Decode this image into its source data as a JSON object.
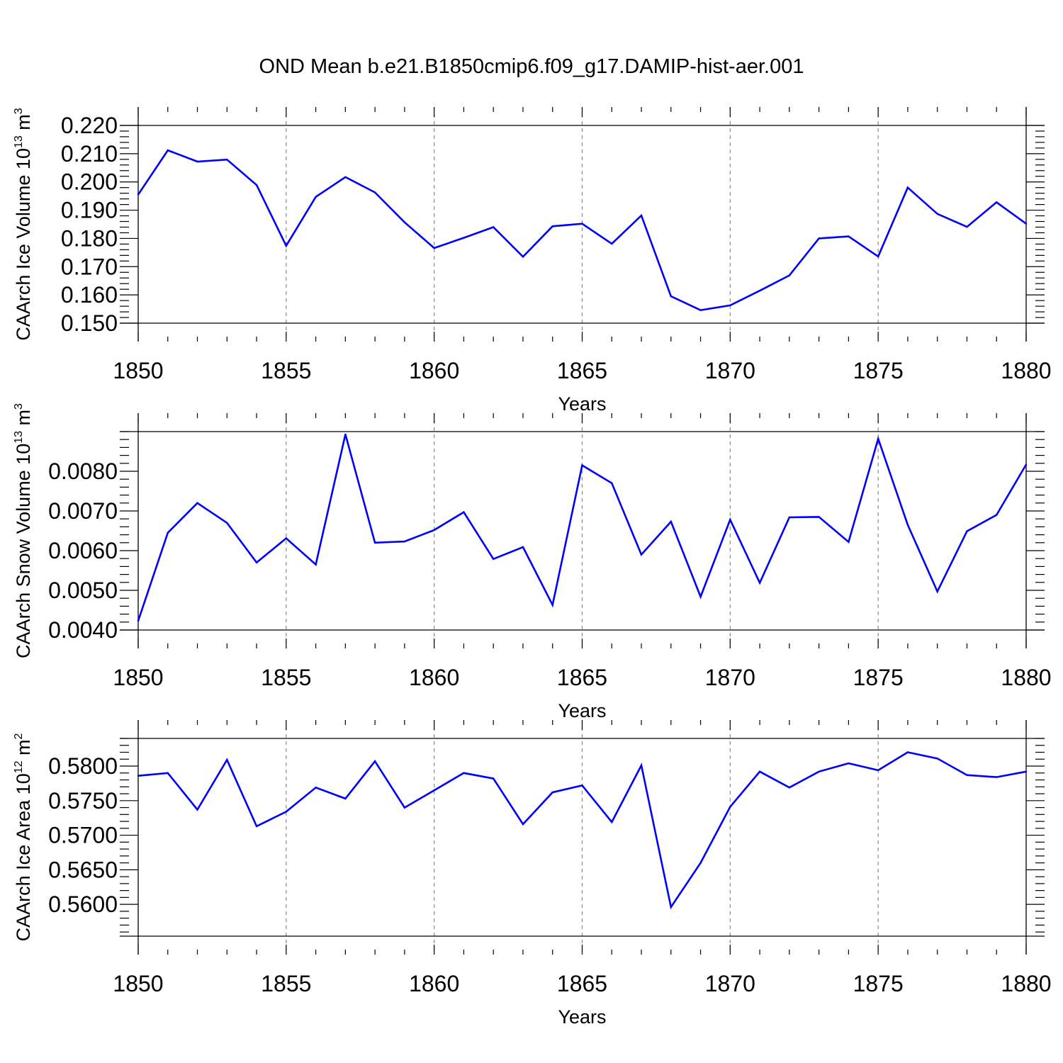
{
  "page": {
    "title": "OND Mean b.e21.B1850cmip6.f09_g17.DAMIP-hist-aer.001"
  },
  "colors": {
    "line": "#0000ff",
    "axes": "#000000",
    "grid": "#888888"
  },
  "chart_data": [
    {
      "type": "line",
      "title": "",
      "xlabel": "Years",
      "ylabel": "CAArch Ice Volume 10",
      "ylabel_exponent": "13",
      "ylabel_unit": "m",
      "ylabel_unit_power": "3",
      "xlim": [
        1850,
        1880
      ],
      "ylim": [
        0.15,
        0.22
      ],
      "x_ticks": [
        1850,
        1855,
        1860,
        1865,
        1870,
        1875,
        1880
      ],
      "x_tick_labels": [
        "1850",
        "1855",
        "1860",
        "1865",
        "1870",
        "1875",
        "1880"
      ],
      "y_ticks": [
        0.15,
        0.16,
        0.17,
        0.18,
        0.19,
        0.2,
        0.21,
        0.22
      ],
      "y_tick_labels": [
        "0.150",
        "0.160",
        "0.170",
        "0.180",
        "0.190",
        "0.200",
        "0.210",
        "0.220"
      ],
      "grid": "vertical dashed at major x ticks",
      "series": [
        {
          "x": [
            1850,
            1851,
            1852,
            1853,
            1854,
            1855,
            1856,
            1857,
            1858,
            1859,
            1860,
            1861,
            1862,
            1863,
            1864,
            1865,
            1866,
            1867,
            1868,
            1869,
            1870,
            1871,
            1872,
            1873,
            1874,
            1875,
            1876,
            1877,
            1878,
            1879,
            1880
          ],
          "y": [
            0.1955,
            0.2112,
            0.2072,
            0.2079,
            0.1989,
            0.1774,
            0.1947,
            0.2017,
            0.1963,
            0.1857,
            0.1766,
            0.1802,
            0.184,
            0.1735,
            0.1843,
            0.1852,
            0.1781,
            0.1881,
            0.1595,
            0.1546,
            0.1563,
            0.1615,
            0.1669,
            0.18,
            0.1807,
            0.1736,
            0.198,
            0.1887,
            0.1841,
            0.1928,
            0.1852
          ]
        }
      ]
    },
    {
      "type": "line",
      "title": "",
      "xlabel": "Years",
      "ylabel": "CAArch Snow Volume 10",
      "ylabel_exponent": "13",
      "ylabel_unit": "m",
      "ylabel_unit_power": "3",
      "xlim": [
        1850,
        1880
      ],
      "ylim": [
        0.004,
        0.009
      ],
      "x_ticks": [
        1850,
        1855,
        1860,
        1865,
        1870,
        1875,
        1880
      ],
      "x_tick_labels": [
        "1850",
        "1855",
        "1860",
        "1865",
        "1870",
        "1875",
        "1880"
      ],
      "y_ticks": [
        0.004,
        0.005,
        0.006,
        0.007,
        0.008
      ],
      "y_tick_labels": [
        "0.0040",
        "0.0050",
        "0.0060",
        "0.0070",
        "0.0080"
      ],
      "grid": "vertical dashed at major x ticks",
      "series": [
        {
          "x": [
            1850,
            1851,
            1852,
            1853,
            1854,
            1855,
            1856,
            1857,
            1858,
            1859,
            1860,
            1861,
            1862,
            1863,
            1864,
            1865,
            1866,
            1867,
            1868,
            1869,
            1870,
            1871,
            1872,
            1873,
            1874,
            1875,
            1876,
            1877,
            1878,
            1879,
            1880
          ],
          "y": [
            0.00423,
            0.00645,
            0.0072,
            0.0067,
            0.0057,
            0.00631,
            0.00565,
            0.00893,
            0.0062,
            0.00623,
            0.00652,
            0.00697,
            0.00579,
            0.00609,
            0.00463,
            0.00815,
            0.0077,
            0.0059,
            0.00673,
            0.00484,
            0.00678,
            0.00519,
            0.00684,
            0.00685,
            0.00622,
            0.00882,
            0.00665,
            0.00497,
            0.00649,
            0.0069,
            0.00817
          ]
        }
      ]
    },
    {
      "type": "line",
      "title": "",
      "xlabel": "Years",
      "ylabel": "CAArch Ice Area 10",
      "ylabel_exponent": "12",
      "ylabel_unit": "m",
      "ylabel_unit_power": "2",
      "xlim": [
        1850,
        1880
      ],
      "ylim": [
        0.5554,
        0.584
      ],
      "x_ticks": [
        1850,
        1855,
        1860,
        1865,
        1870,
        1875,
        1880
      ],
      "x_tick_labels": [
        "1850",
        "1855",
        "1860",
        "1865",
        "1870",
        "1875",
        "1880"
      ],
      "y_ticks": [
        0.56,
        0.565,
        0.57,
        0.575,
        0.58
      ],
      "y_tick_labels": [
        "0.5600",
        "0.5650",
        "0.5700",
        "0.5750",
        "0.5800"
      ],
      "grid": "vertical dashed at major x ticks",
      "series": [
        {
          "x": [
            1850,
            1851,
            1852,
            1853,
            1854,
            1855,
            1856,
            1857,
            1858,
            1859,
            1860,
            1861,
            1862,
            1863,
            1864,
            1865,
            1866,
            1867,
            1868,
            1869,
            1870,
            1871,
            1872,
            1873,
            1874,
            1875,
            1876,
            1877,
            1878,
            1879,
            1880
          ],
          "y": [
            0.5786,
            0.579,
            0.5737,
            0.5809,
            0.5713,
            0.5734,
            0.5769,
            0.5753,
            0.5807,
            0.574,
            0.5765,
            0.579,
            0.5782,
            0.5716,
            0.5762,
            0.5772,
            0.5719,
            0.5801,
            0.5596,
            0.566,
            0.5741,
            0.5792,
            0.5769,
            0.5792,
            0.5804,
            0.5794,
            0.582,
            0.5811,
            0.5787,
            0.5784,
            0.5792
          ]
        }
      ]
    }
  ]
}
